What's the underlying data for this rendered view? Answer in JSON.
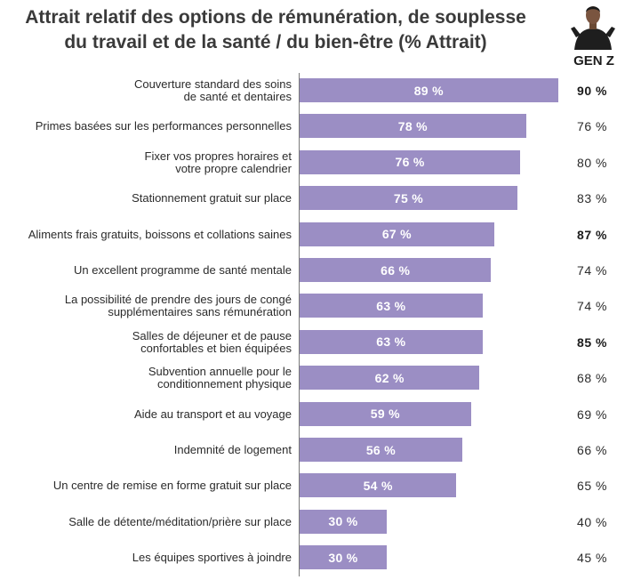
{
  "chart_data": {
    "type": "bar",
    "orientation": "horizontal",
    "title": "Attrait relatif des options de rémunération, de souplesse du travail et de la santé / du bien-être (% Attrait)",
    "title_line1": "Attrait relatif des options de rémunération, de souplesse",
    "title_line2": "du travail et de la santé / du bien-être (% Attrait)",
    "xlim": [
      0,
      100
    ],
    "bar_color": "#9b8ec4",
    "gen_z_header": "GEN Z",
    "rows": [
      {
        "label": [
          "Couverture standard des soins",
          "de santé et dentaires"
        ],
        "value": 89,
        "value_label": "89 %",
        "gen_z": 90,
        "gen_z_label": "90 %",
        "gen_z_bold": true
      },
      {
        "label": [
          "Primes basées sur les performances personnelles"
        ],
        "value": 78,
        "value_label": "78 %",
        "gen_z": 76,
        "gen_z_label": "76 %",
        "gen_z_bold": false
      },
      {
        "label": [
          "Fixer vos propres horaires et",
          "votre propre calendrier"
        ],
        "value": 76,
        "value_label": "76 %",
        "gen_z": 80,
        "gen_z_label": "80 %",
        "gen_z_bold": false
      },
      {
        "label": [
          "Stationnement gratuit sur place"
        ],
        "value": 75,
        "value_label": "75 %",
        "gen_z": 83,
        "gen_z_label": "83 %",
        "gen_z_bold": false
      },
      {
        "label": [
          "Aliments frais gratuits, boissons et collations saines"
        ],
        "value": 67,
        "value_label": "67 %",
        "gen_z": 87,
        "gen_z_label": "87 %",
        "gen_z_bold": true
      },
      {
        "label": [
          "Un excellent programme de santé mentale"
        ],
        "value": 66,
        "value_label": "66 %",
        "gen_z": 74,
        "gen_z_label": "74 %",
        "gen_z_bold": false
      },
      {
        "label": [
          "La possibilité de prendre des jours de congé",
          "supplémentaires sans rémunération"
        ],
        "value": 63,
        "value_label": "63 %",
        "gen_z": 74,
        "gen_z_label": "74 %",
        "gen_z_bold": false
      },
      {
        "label": [
          "Salles de déjeuner et de pause",
          "confortables et bien équipées"
        ],
        "value": 63,
        "value_label": "63 %",
        "gen_z": 85,
        "gen_z_label": "85 %",
        "gen_z_bold": true
      },
      {
        "label": [
          "Subvention annuelle pour le",
          "conditionnement physique"
        ],
        "value": 62,
        "value_label": "62 %",
        "gen_z": 68,
        "gen_z_label": "68 %",
        "gen_z_bold": false
      },
      {
        "label": [
          "Aide au transport et au voyage"
        ],
        "value": 59,
        "value_label": "59 %",
        "gen_z": 69,
        "gen_z_label": "69 %",
        "gen_z_bold": false
      },
      {
        "label": [
          "Indemnité de logement"
        ],
        "value": 56,
        "value_label": "56 %",
        "gen_z": 66,
        "gen_z_label": "66 %",
        "gen_z_bold": false
      },
      {
        "label": [
          "Un centre de remise en forme gratuit sur place"
        ],
        "value": 54,
        "value_label": "54 %",
        "gen_z": 65,
        "gen_z_label": "65 %",
        "gen_z_bold": false
      },
      {
        "label": [
          "Salle de détente/méditation/prière sur place"
        ],
        "value": 30,
        "value_label": "30 %",
        "gen_z": 40,
        "gen_z_label": "40 %",
        "gen_z_bold": false
      },
      {
        "label": [
          "Les équipes sportives à joindre"
        ],
        "value": 30,
        "value_label": "30 %",
        "gen_z": 45,
        "gen_z_label": "45 %",
        "gen_z_bold": false
      }
    ]
  },
  "icons": {
    "gen_z_avatar": "person-avatar-icon"
  }
}
